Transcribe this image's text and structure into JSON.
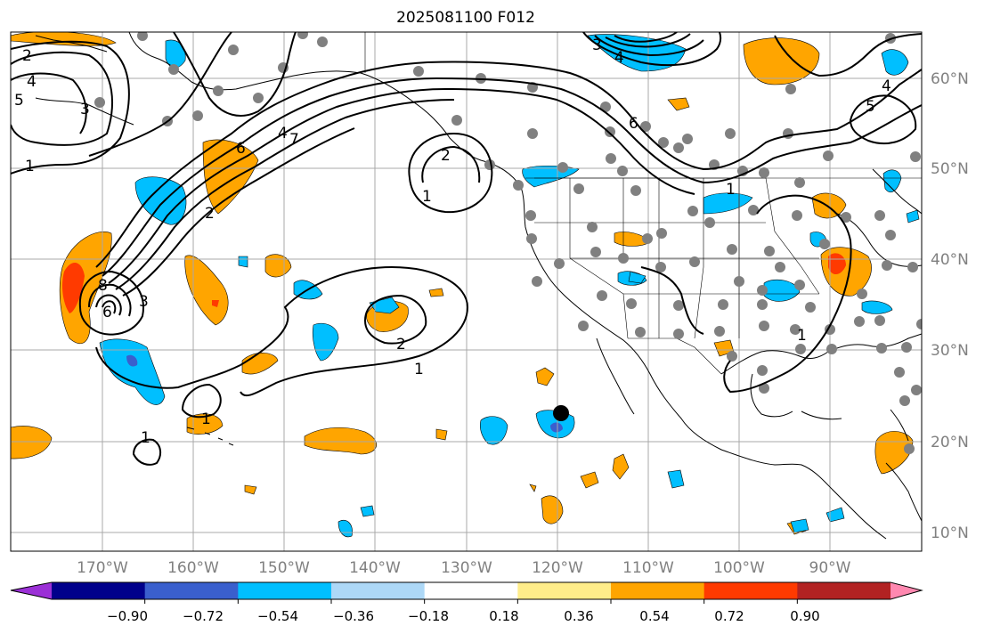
{
  "title": "2025081100 F012",
  "lon_labels": [
    "170°W",
    "160°W",
    "150°W",
    "140°W",
    "130°W",
    "120°W",
    "110°W",
    "100°W",
    "90°W"
  ],
  "lat_labels": [
    "60°N",
    "50°N",
    "40°N",
    "30°N",
    "20°N",
    "10°N"
  ],
  "colorbar": {
    "colors": [
      "#9b30d6",
      "#00008b",
      "#3a5fcd",
      "#00bfff",
      "#add8f7",
      "#ffffff",
      "#ffed8a",
      "#ffa500",
      "#ff3a00",
      "#b22222",
      "#ff88b0"
    ],
    "tick_labels": [
      "−0.90",
      "−0.72",
      "−0.54",
      "−0.36",
      "−0.18",
      "0.18",
      "0.36",
      "0.54",
      "0.72",
      "0.90"
    ]
  },
  "contour_labels": [
    "2",
    "4",
    "5",
    "3",
    "1",
    "6",
    "4",
    "7",
    "3",
    "4",
    "6",
    "2",
    "1",
    "8",
    "6",
    "3",
    "2",
    "1",
    "1",
    "1",
    "2",
    "1",
    "4",
    "5",
    "1"
  ],
  "colors": {
    "grid": "#a8a8a8",
    "station": "#808080",
    "marker": "#000000",
    "orange": "#ffa500",
    "red": "#ff3a00",
    "cyan": "#00bfff",
    "blue": "#3a5fcd"
  }
}
